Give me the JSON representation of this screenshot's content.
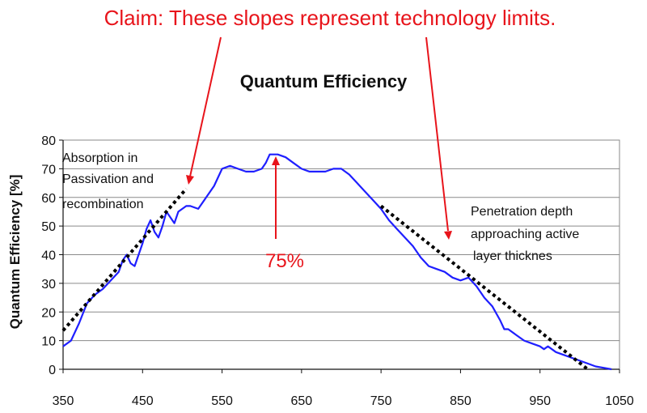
{
  "chart_data": {
    "type": "line",
    "title": "Quantum Efficiency",
    "xlabel": "",
    "ylabel": "Quantum Efficiency [%]",
    "xlim": [
      350,
      1050
    ],
    "ylim": [
      0,
      80
    ],
    "xticks": [
      350,
      450,
      550,
      650,
      750,
      850,
      950,
      1050
    ],
    "yticks": [
      0,
      10,
      20,
      30,
      40,
      50,
      60,
      70,
      80
    ],
    "grid": "horizontal",
    "series": [
      {
        "color": "#1f1fff",
        "style": "solid",
        "x": [
          350,
          360,
          370,
          380,
          390,
          400,
          410,
          420,
          425,
          430,
          435,
          440,
          450,
          455,
          460,
          465,
          470,
          475,
          480,
          485,
          490,
          495,
          500,
          505,
          510,
          520,
          530,
          540,
          550,
          560,
          570,
          580,
          590,
          600,
          605,
          610,
          620,
          630,
          640,
          650,
          660,
          670,
          680,
          690,
          700,
          710,
          720,
          730,
          740,
          750,
          760,
          770,
          780,
          790,
          800,
          810,
          820,
          830,
          840,
          850,
          860,
          870,
          880,
          890,
          900,
          905,
          910,
          920,
          930,
          940,
          950,
          955,
          960,
          970,
          980,
          990,
          1000,
          1010,
          1020,
          1030,
          1040
        ],
        "values": [
          8,
          10,
          16,
          23,
          26,
          28,
          31,
          34,
          38,
          40,
          37,
          36,
          44,
          49,
          52,
          48,
          46,
          50,
          55,
          53,
          51,
          55,
          56,
          57,
          57,
          56,
          60,
          64,
          70,
          71,
          70,
          69,
          69,
          70,
          72,
          75,
          75,
          74,
          72,
          70,
          69,
          69,
          69,
          70,
          70,
          68,
          65,
          62,
          59,
          56,
          52,
          49,
          46,
          43,
          39,
          36,
          35,
          34,
          32,
          31,
          32,
          29,
          25,
          22,
          17,
          14,
          14,
          12,
          10,
          9,
          8,
          7,
          8,
          6,
          5,
          4,
          3,
          2,
          1,
          0.5,
          0
        ]
      },
      {
        "color": "#000000",
        "style": "dotted",
        "x": [
          350,
          505
        ],
        "values": [
          13.5,
          63
        ]
      },
      {
        "color": "#000000",
        "style": "dotted",
        "x": [
          750,
          1010
        ],
        "values": [
          57,
          0
        ]
      }
    ],
    "annotations": [
      {
        "text": "Absorption in"
      },
      {
        "text": "Passivation and"
      },
      {
        "text": "recombination"
      },
      {
        "text": "Penetration depth"
      },
      {
        "text": "approaching active"
      },
      {
        "text": "layer thicknes"
      },
      {
        "text": "75%",
        "color": "#e8141b"
      }
    ],
    "claim": "Claim: These slopes represent technology limits."
  },
  "colors": {
    "accent_red": "#e8141b",
    "curve": "#1f1fff",
    "grid": "#8a8a8a"
  }
}
